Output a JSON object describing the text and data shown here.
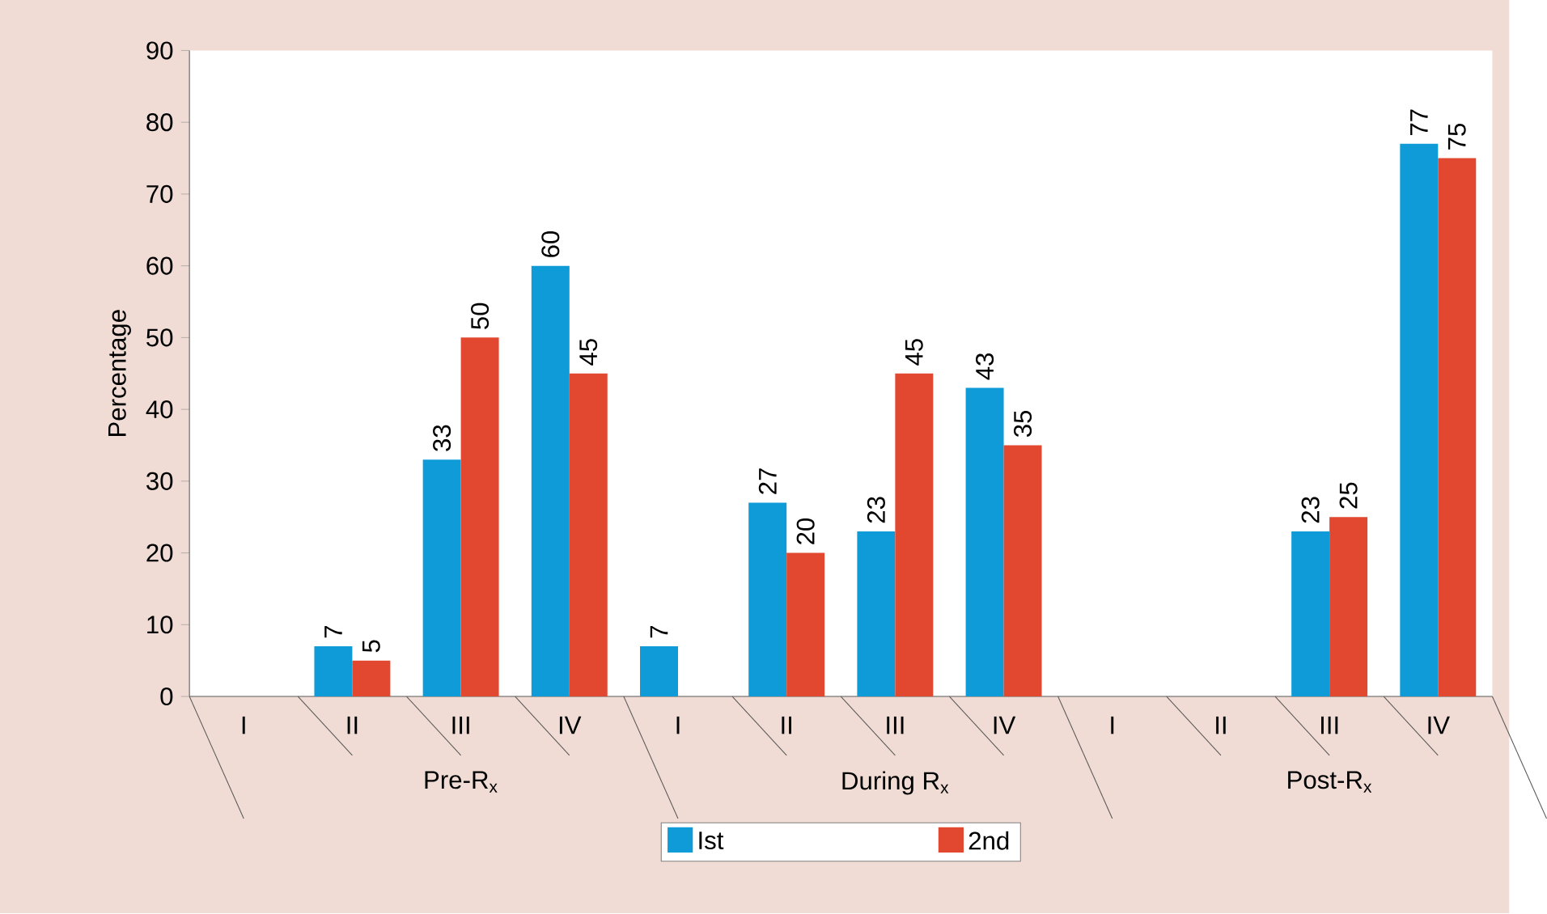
{
  "chart_data": {
    "type": "bar",
    "ylabel": "Percentage",
    "categories": [
      "I",
      "II",
      "III",
      "IV",
      "I",
      "II",
      "III",
      "IV",
      "I",
      "II",
      "III",
      "IV"
    ],
    "series": [
      {
        "name": "Ist",
        "color": "#0f9bd7",
        "values": [
          null,
          7,
          33,
          60,
          7,
          27,
          23,
          43,
          null,
          null,
          23,
          77
        ]
      },
      {
        "name": "2nd",
        "color": "#e2472f",
        "values": [
          null,
          5,
          50,
          45,
          null,
          20,
          45,
          35,
          null,
          null,
          25,
          75
        ]
      }
    ],
    "annotations": [
      "Pre-R$_{x}$",
      "During R$_{x}$",
      "Post-R$_{x}$"
    ],
    "ylim": [
      0,
      90
    ],
    "yticks": [
      0,
      10,
      20,
      30,
      40,
      50,
      60,
      70,
      80,
      90
    ],
    "data_labels": true,
    "legend": "bottom",
    "grid": false
  }
}
